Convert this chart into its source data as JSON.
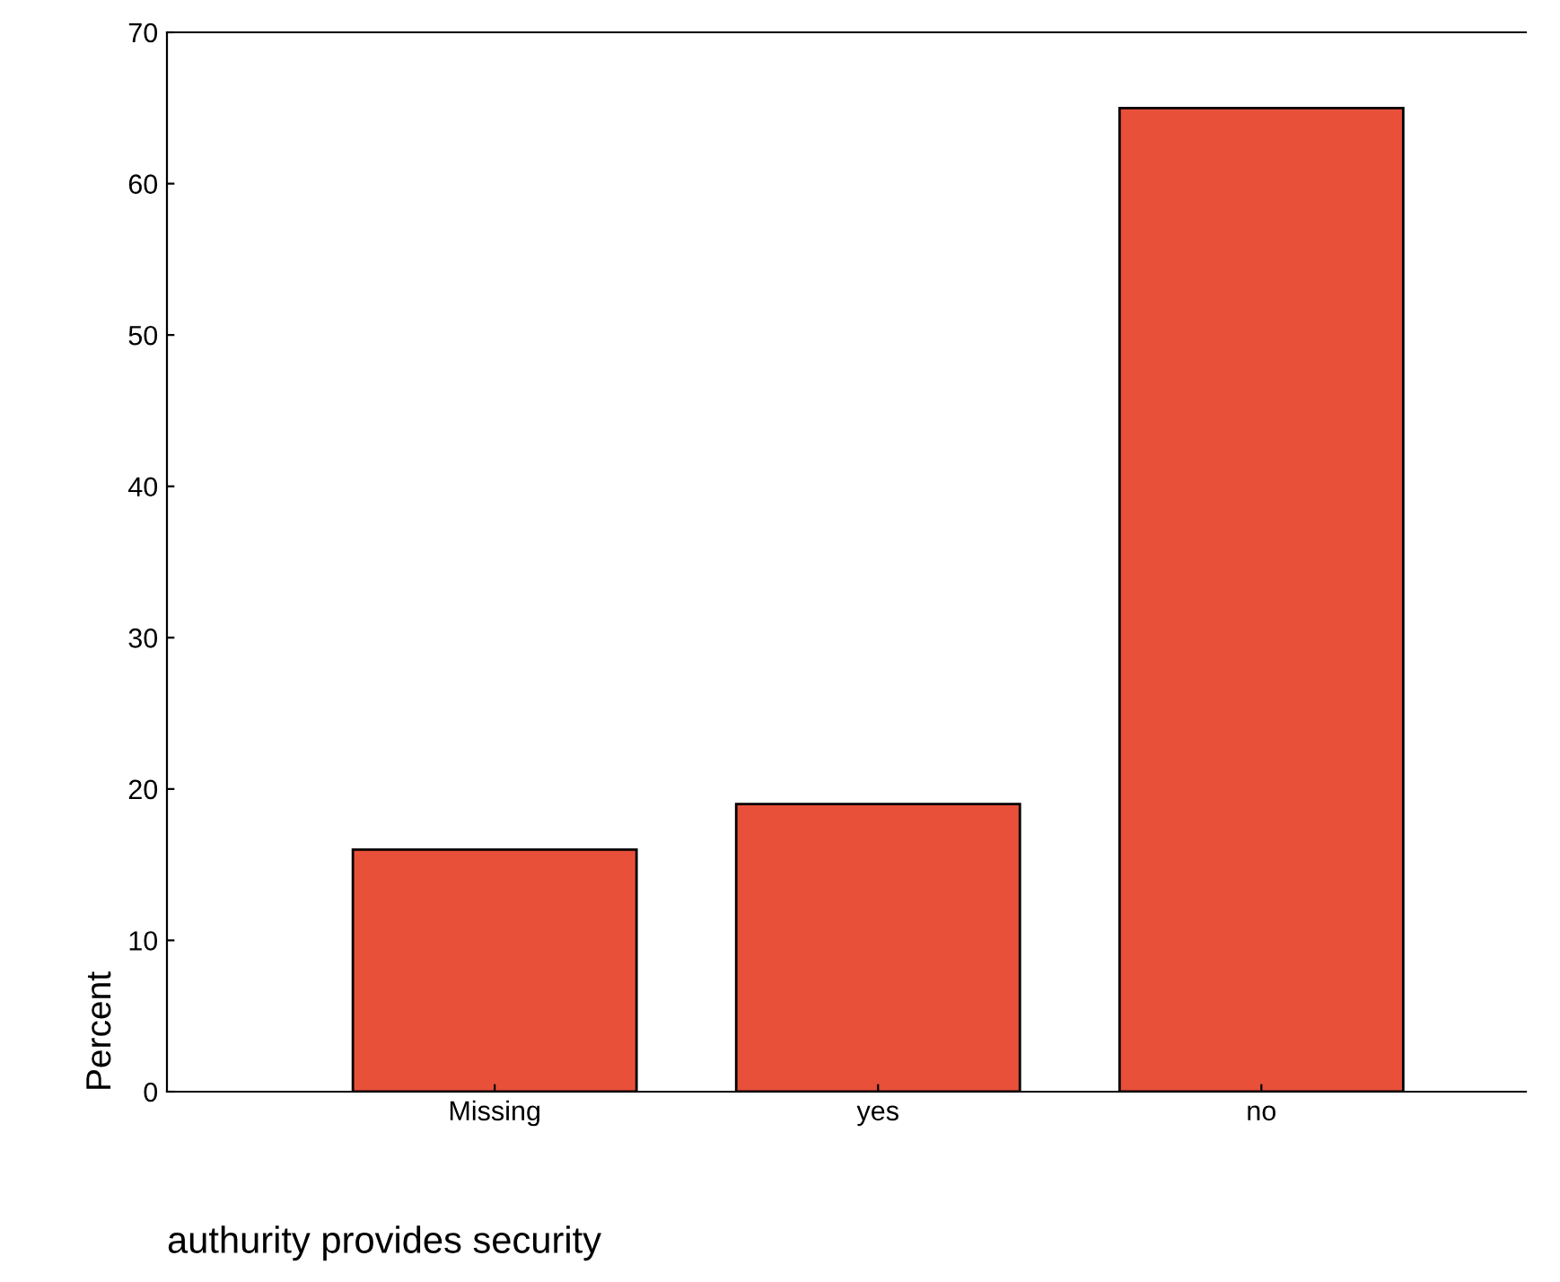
{
  "chart_data": {
    "type": "bar",
    "categories": [
      "Missing",
      "yes",
      "no"
    ],
    "values": [
      16,
      19,
      65
    ],
    "color": "#e8503a",
    "xlabel": "authurity provides security",
    "ylabel": "Percent",
    "ylim": [
      0,
      70
    ],
    "yticks": [
      0,
      10,
      20,
      30,
      40,
      50,
      60,
      70
    ],
    "grid": false
  }
}
